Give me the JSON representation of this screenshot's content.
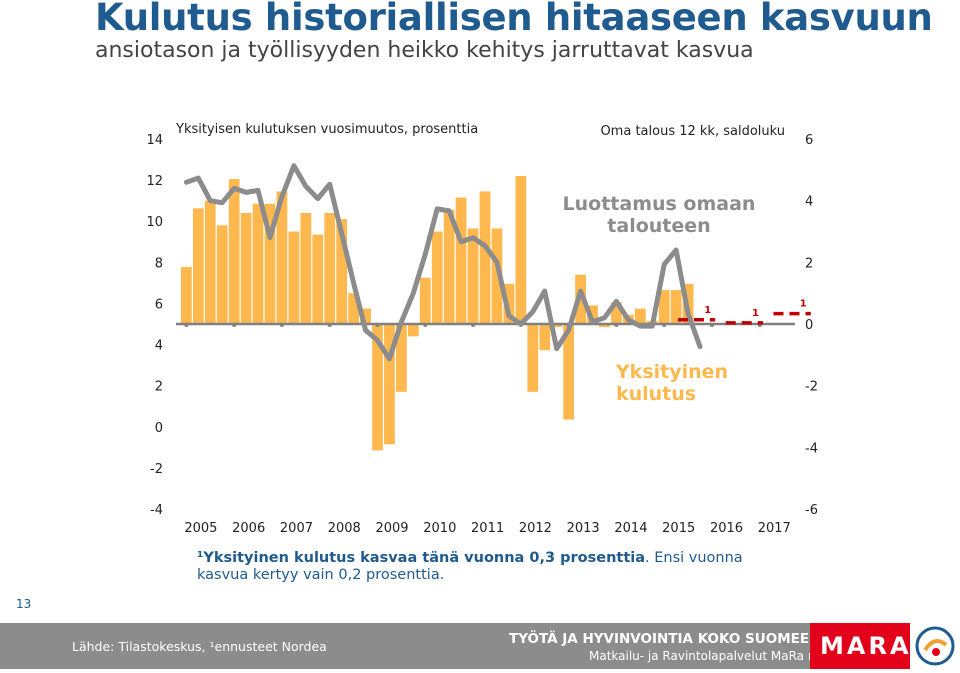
{
  "header": {
    "title": "Kulutus historiallisen hitaaseen kasvuun",
    "subtitle": "ansiotason ja työllisyyden heikko kehitys jarruttavat kasvua"
  },
  "chart_data": {
    "type": "bar",
    "title": "",
    "left_axis_label": "Yksityisen kulutuksen vuosimuutos, prosenttia",
    "right_axis_label": "Oma talous 12 kk, saldoluku",
    "y_left": {
      "min": -4,
      "max": 14,
      "ticks": [
        "14",
        "12",
        "10",
        "8",
        "6",
        "4",
        "2",
        "0",
        "-2",
        "-4"
      ]
    },
    "y_right": {
      "min": -6,
      "max": 6,
      "ticks": [
        "6",
        "4",
        "2",
        "0",
        "-2",
        "-4",
        "-6"
      ]
    },
    "x_start": 2005,
    "x_ticks": [
      "2005",
      "2006",
      "2007",
      "2008",
      "2009",
      "2010",
      "2011",
      "2012",
      "2013",
      "2014",
      "2015",
      "2016",
      "2017"
    ],
    "series": [
      {
        "name": "Yksityinen kulutus",
        "type": "bar",
        "axis": "right",
        "color": "#ffb84d",
        "points": [
          [
            2005.0,
            1.85
          ],
          [
            2005.25,
            3.75
          ],
          [
            2005.5,
            4.0
          ],
          [
            2005.75,
            3.2
          ],
          [
            2006.0,
            4.7
          ],
          [
            2006.25,
            3.6
          ],
          [
            2006.5,
            3.9
          ],
          [
            2006.75,
            3.9
          ],
          [
            2007.0,
            4.3
          ],
          [
            2007.25,
            3.0
          ],
          [
            2007.5,
            3.6
          ],
          [
            2007.75,
            2.9
          ],
          [
            2008.0,
            3.6
          ],
          [
            2008.25,
            3.4
          ],
          [
            2008.5,
            1.0
          ],
          [
            2008.75,
            0.5
          ],
          [
            2009.0,
            -4.1
          ],
          [
            2009.25,
            -3.9
          ],
          [
            2009.5,
            -2.2
          ],
          [
            2009.75,
            -0.4
          ],
          [
            2010.0,
            1.5
          ],
          [
            2010.25,
            3.0
          ],
          [
            2010.5,
            3.7
          ],
          [
            2010.75,
            4.1
          ],
          [
            2011.0,
            3.1
          ],
          [
            2011.25,
            4.3
          ],
          [
            2011.5,
            3.1
          ],
          [
            2011.75,
            1.3
          ],
          [
            2012.0,
            4.8
          ],
          [
            2012.25,
            -2.2
          ],
          [
            2012.5,
            -0.85
          ],
          [
            2012.75,
            -0.1
          ],
          [
            2013.0,
            -3.1
          ],
          [
            2013.25,
            1.6
          ],
          [
            2013.5,
            0.6
          ],
          [
            2013.75,
            -0.1
          ],
          [
            2014.0,
            0.7
          ],
          [
            2014.25,
            0.3
          ],
          [
            2014.5,
            0.5
          ],
          [
            2014.75,
            0.1
          ],
          [
            2015.0,
            1.1
          ],
          [
            2015.25,
            1.1
          ],
          [
            2015.5,
            1.3
          ]
        ]
      },
      {
        "name": "Oma talous 12 kk, saldoluku",
        "type": "line",
        "axis": "left",
        "color": "#8c8c8c",
        "points": [
          [
            2005.0,
            11.9
          ],
          [
            2005.25,
            12.1
          ],
          [
            2005.5,
            11.0
          ],
          [
            2005.75,
            10.9
          ],
          [
            2006.0,
            11.6
          ],
          [
            2006.25,
            11.4
          ],
          [
            2006.5,
            11.5
          ],
          [
            2006.75,
            9.2
          ],
          [
            2007.0,
            11.2
          ],
          [
            2007.25,
            12.7
          ],
          [
            2007.5,
            11.7
          ],
          [
            2007.75,
            11.1
          ],
          [
            2008.0,
            11.8
          ],
          [
            2008.25,
            9.4
          ],
          [
            2008.5,
            7.0
          ],
          [
            2008.75,
            4.7
          ],
          [
            2009.0,
            4.2
          ],
          [
            2009.25,
            3.3
          ],
          [
            2009.5,
            5.1
          ],
          [
            2009.75,
            6.5
          ],
          [
            2010.0,
            8.4
          ],
          [
            2010.25,
            10.6
          ],
          [
            2010.5,
            10.5
          ],
          [
            2010.75,
            9.0
          ],
          [
            2011.0,
            9.2
          ],
          [
            2011.25,
            8.8
          ],
          [
            2011.5,
            8.0
          ],
          [
            2011.75,
            5.4
          ],
          [
            2012.0,
            5.0
          ],
          [
            2012.25,
            5.6
          ],
          [
            2012.5,
            6.6
          ],
          [
            2012.75,
            3.8
          ],
          [
            2013.0,
            4.7
          ],
          [
            2013.25,
            6.6
          ],
          [
            2013.5,
            5.1
          ],
          [
            2013.75,
            5.3
          ],
          [
            2014.0,
            6.1
          ],
          [
            2014.25,
            5.2
          ],
          [
            2014.5,
            4.9
          ],
          [
            2014.75,
            4.9
          ],
          [
            2015.0,
            7.9
          ],
          [
            2015.25,
            8.6
          ],
          [
            2015.5,
            5.5
          ],
          [
            2015.75,
            3.9
          ]
        ]
      },
      {
        "name": "ennuste",
        "type": "forecast-step",
        "axis": "right",
        "color": "#c00000",
        "label": "1",
        "points": [
          [
            2016,
            0.3
          ],
          [
            2017,
            0.2
          ],
          [
            2018,
            0.5
          ]
        ]
      }
    ],
    "annotations": [
      {
        "text": "Luottamus omaan\ntalouteen",
        "color": "#8c8c8c"
      },
      {
        "text": "Yksityinen\nkulutus",
        "color": "#ffb84d"
      }
    ]
  },
  "footnote": {
    "bold": "¹Yksityinen kulutus kasvaa tänä vuonna 0,3 prosenttia",
    "rest": ". Ensi vuonna kasvua kertyy vain 0,2 prosenttia."
  },
  "page_number": "13",
  "footer": {
    "source": "Lähde: Tilastokeskus, ¹ennusteet Nordea",
    "tagline1": "TYÖTÄ JA HYVINVOINTIA KOKO SUOMEEN",
    "tagline2": "Matkailu- ja Ravintolapalvelut MaRa ry",
    "logo_text": "MARA"
  }
}
